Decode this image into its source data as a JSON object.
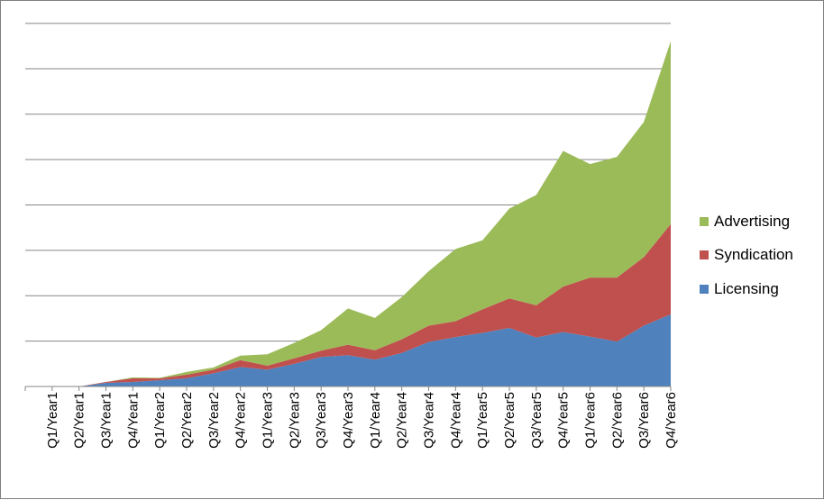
{
  "chart_data": {
    "type": "area",
    "stacked": true,
    "categories": [
      "Q1/Year1",
      "Q2/Year1",
      "Q3/Year1",
      "Q4/Year1",
      "Q1/Year2",
      "Q2/Year2",
      "Q3/Year2",
      "Q4/Year2",
      "Q1/Year3",
      "Q2/Year3",
      "Q3/Year3",
      "Q4/Year3",
      "Q1/Year4",
      "Q2/Year4",
      "Q3/Year4",
      "Q4/Year4",
      "Q1/Year5",
      "Q2/Year5",
      "Q3/Year5",
      "Q4/Year5",
      "Q1/Year6",
      "Q2/Year6",
      "Q3/Year6",
      "Q4/Year6"
    ],
    "series": [
      {
        "name": "Licensing",
        "color": "#4f81bd",
        "values": [
          0,
          0,
          0.08,
          0.1,
          0.14,
          0.18,
          0.29,
          0.43,
          0.37,
          0.5,
          0.65,
          0.69,
          0.59,
          0.74,
          0.98,
          1.09,
          1.18,
          1.29,
          1.08,
          1.2,
          1.1,
          0.99,
          1.34,
          1.59
        ]
      },
      {
        "name": "Syndication",
        "color": "#c0504d",
        "values": [
          0,
          0,
          0.02,
          0.08,
          0.04,
          0.08,
          0.08,
          0.15,
          0.09,
          0.12,
          0.14,
          0.23,
          0.21,
          0.3,
          0.36,
          0.35,
          0.52,
          0.65,
          0.71,
          1.0,
          1.3,
          1.41,
          1.51,
          1.99
        ]
      },
      {
        "name": "Advertising",
        "color": "#9bbb59",
        "values": [
          0,
          0,
          0,
          0.02,
          0.01,
          0.06,
          0.05,
          0.1,
          0.25,
          0.34,
          0.45,
          0.8,
          0.71,
          0.93,
          1.2,
          1.59,
          1.52,
          1.98,
          2.43,
          2.99,
          2.5,
          2.66,
          2.98,
          4.03
        ]
      }
    ],
    "ylim": [
      0,
      8
    ],
    "y_gridlines": 8,
    "y_tick_labels_visible": false,
    "grid": true,
    "legend_position": "right"
  }
}
